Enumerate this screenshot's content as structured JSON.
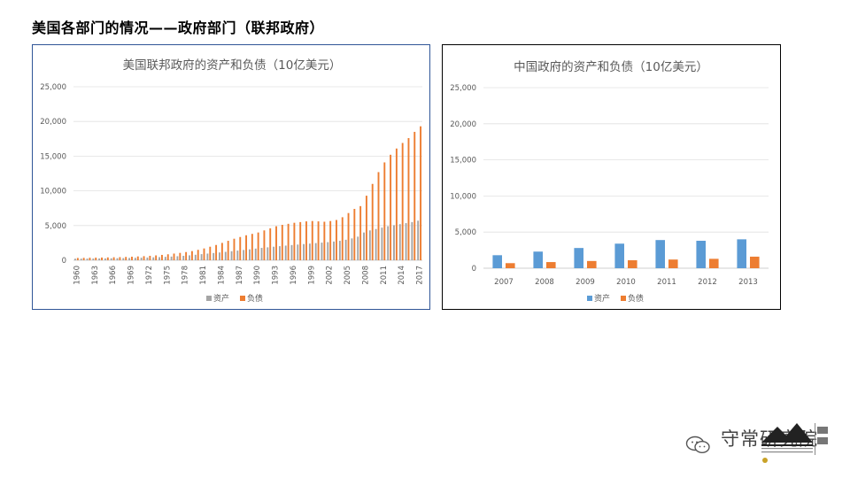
{
  "page": {
    "title": "美国各部门的情况——政府部门（联邦政府）"
  },
  "brand": {
    "name": "守常研究院",
    "logo_icon": "mountain-logo-icon",
    "wechat_icon": "wechat-icon"
  },
  "colors": {
    "asset": "#5b9bd5",
    "liability": "#ed7d31",
    "us_asset": "#a5a5a5"
  },
  "chart_data": [
    {
      "id": "us",
      "type": "bar",
      "title": "美国联邦政府的资产和负债（10亿美元）",
      "ylim": [
        0,
        25000
      ],
      "yticks": [
        "0",
        "5,000",
        "10,000",
        "15,000",
        "20,000",
        "25,000"
      ],
      "grid": true,
      "legend": "bottom",
      "x": [
        1960,
        1961,
        1962,
        1963,
        1964,
        1965,
        1966,
        1967,
        1968,
        1969,
        1970,
        1971,
        1972,
        1973,
        1974,
        1975,
        1976,
        1977,
        1978,
        1979,
        1980,
        1981,
        1982,
        1983,
        1984,
        1985,
        1986,
        1987,
        1988,
        1989,
        1990,
        1991,
        1992,
        1993,
        1994,
        1995,
        1996,
        1997,
        1998,
        1999,
        2000,
        2001,
        2002,
        2003,
        2004,
        2005,
        2006,
        2007,
        2008,
        2009,
        2010,
        2011,
        2012,
        2013,
        2014,
        2015,
        2016,
        2017
      ],
      "xtick_labels": [
        "1960",
        "1963",
        "1966",
        "1969",
        "1972",
        "1975",
        "1978",
        "1981",
        "1984",
        "1987",
        "1990",
        "1993",
        "1996",
        "1999",
        "2002",
        "2005",
        "2008",
        "2011",
        "2014",
        "2017"
      ],
      "series": [
        {
          "name": "资产",
          "values": [
            220,
            225,
            235,
            245,
            255,
            265,
            280,
            295,
            310,
            330,
            350,
            370,
            390,
            420,
            450,
            490,
            530,
            580,
            640,
            710,
            790,
            880,
            960,
            1040,
            1120,
            1210,
            1300,
            1390,
            1480,
            1570,
            1680,
            1780,
            1860,
            1950,
            2030,
            2110,
            2190,
            2260,
            2330,
            2400,
            2470,
            2540,
            2610,
            2700,
            2800,
            2950,
            3150,
            3400,
            4000,
            4300,
            4500,
            4700,
            4900,
            5050,
            5200,
            5350,
            5500,
            5700
          ]
        },
        {
          "name": "负债",
          "values": [
            330,
            345,
            360,
            375,
            390,
            410,
            430,
            450,
            480,
            510,
            550,
            590,
            640,
            700,
            770,
            860,
            960,
            1060,
            1180,
            1320,
            1500,
            1700,
            1950,
            2200,
            2500,
            2800,
            3100,
            3350,
            3600,
            3800,
            4000,
            4300,
            4600,
            4900,
            5100,
            5250,
            5400,
            5500,
            5600,
            5650,
            5600,
            5550,
            5650,
            5800,
            6200,
            6800,
            7400,
            7800,
            9300,
            11000,
            12700,
            14100,
            15200,
            16100,
            16900,
            17600,
            18500,
            19300
          ]
        }
      ]
    },
    {
      "id": "cn",
      "type": "bar",
      "title": "中国政府的资产和负债（10亿美元）",
      "ylim": [
        0,
        25000
      ],
      "yticks": [
        "0",
        "5,000",
        "10,000",
        "15,000",
        "20,000",
        "25,000"
      ],
      "grid": true,
      "legend": "bottom",
      "categories": [
        "2007",
        "2008",
        "2009",
        "2010",
        "2011",
        "2012",
        "2013"
      ],
      "series": [
        {
          "name": "资产",
          "values": [
            1800,
            2300,
            2800,
            3400,
            3900,
            3800,
            4000
          ]
        },
        {
          "name": "负债",
          "values": [
            700,
            850,
            1000,
            1100,
            1200,
            1300,
            1600
          ]
        }
      ]
    }
  ]
}
